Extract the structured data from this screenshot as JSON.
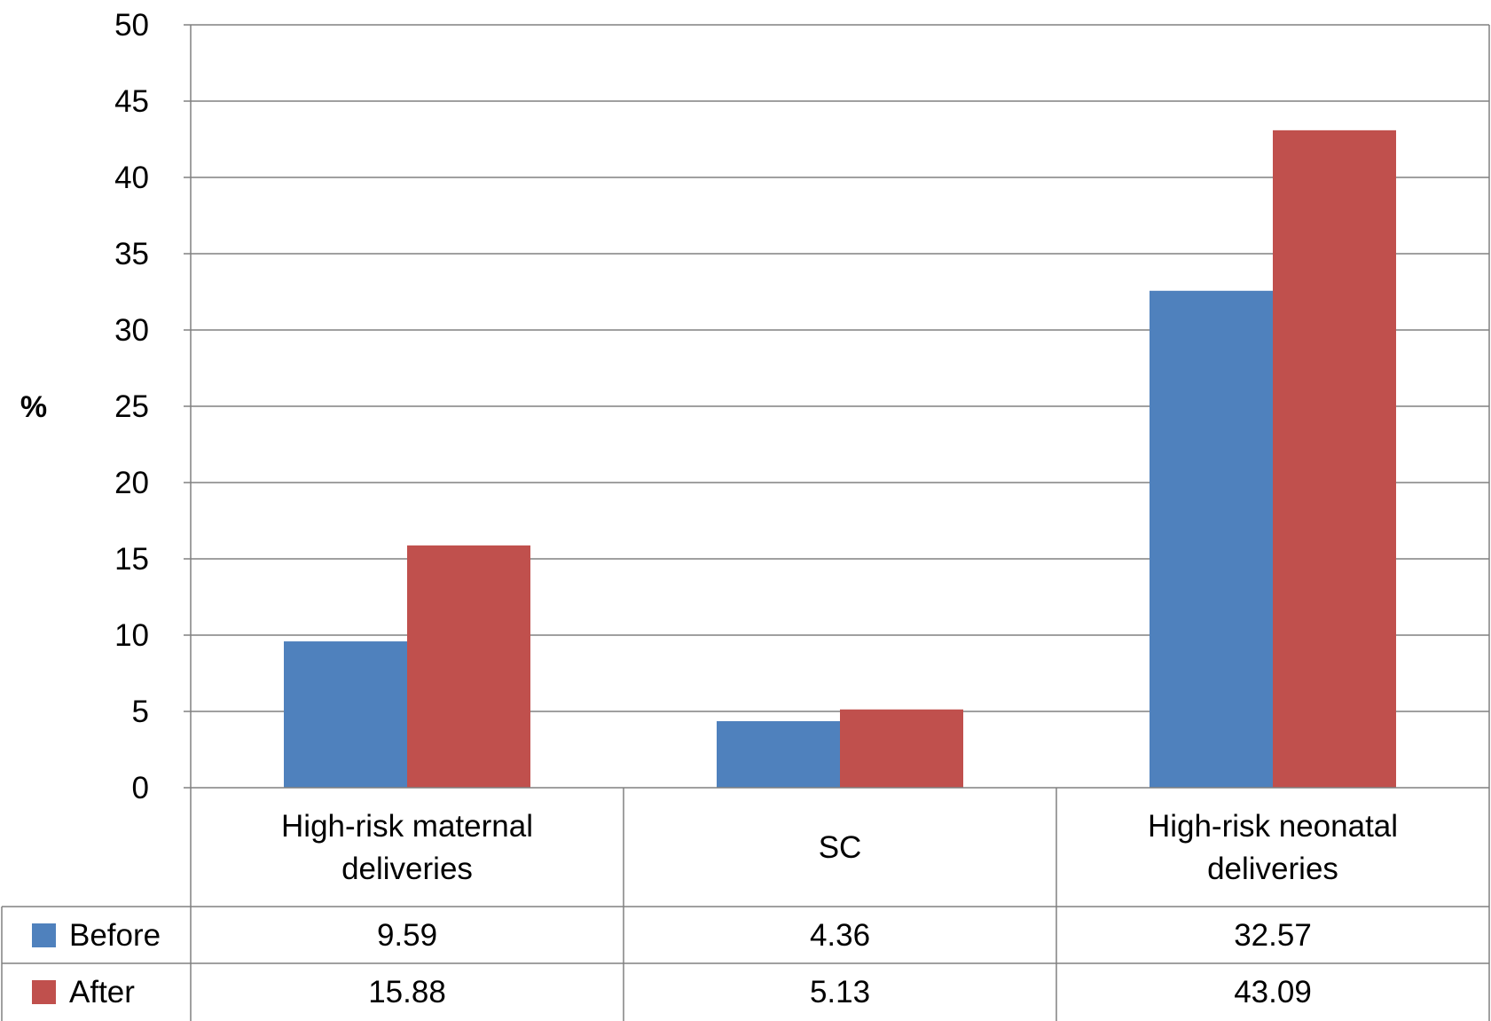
{
  "chart_data": {
    "type": "bar",
    "ylabel": "%",
    "ylim": [
      0,
      50
    ],
    "ytick_step": 5,
    "grid": true,
    "categories": [
      [
        "High-risk maternal",
        "deliveries"
      ],
      [
        "SC"
      ],
      [
        "High-risk neonatal",
        "deliveries"
      ]
    ],
    "series": [
      {
        "name": "Before",
        "color": "#4F81BD",
        "values": [
          9.59,
          4.36,
          32.57
        ],
        "labels": [
          "9.59",
          "4.36",
          "32.57"
        ]
      },
      {
        "name": "After",
        "color": "#C0504D",
        "values": [
          15.88,
          5.13,
          43.09
        ],
        "labels": [
          "15.88",
          "5.13",
          "43.09"
        ]
      }
    ],
    "legend": "data-table"
  }
}
